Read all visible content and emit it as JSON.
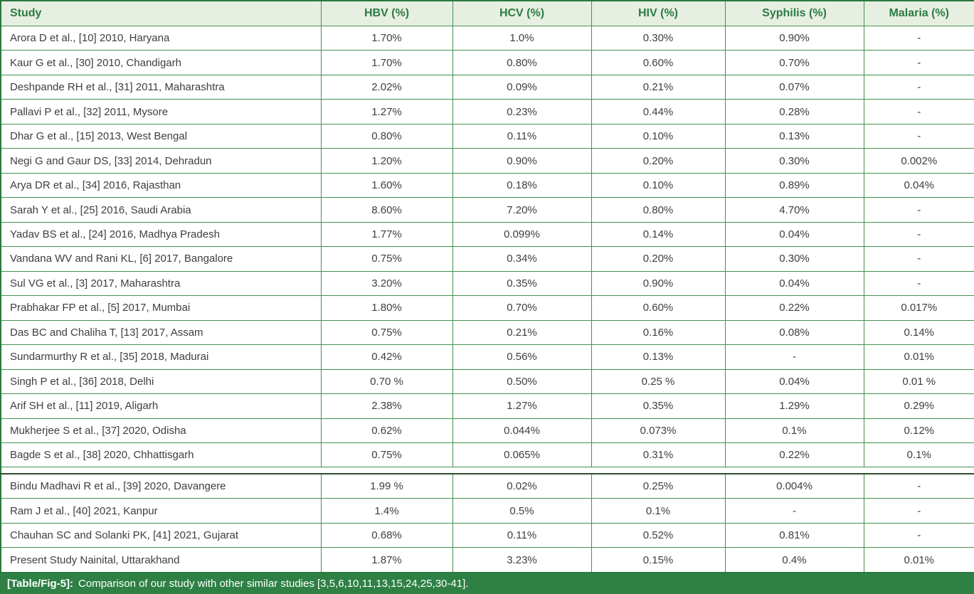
{
  "table": {
    "columns": [
      "Study",
      "HBV (%)",
      "HCV (%)",
      "HIV (%)",
      "Syphilis (%)",
      "Malaria (%)"
    ],
    "section_break_after_row": 18,
    "rows": [
      [
        "Arora D et al., [10] 2010, Haryana",
        "1.70%",
        "1.0%",
        "0.30%",
        "0.90%",
        "-"
      ],
      [
        "Kaur G et al., [30] 2010, Chandigarh",
        "1.70%",
        "0.80%",
        "0.60%",
        "0.70%",
        "-"
      ],
      [
        "Deshpande RH et al., [31] 2011, Maharashtra",
        "2.02%",
        "0.09%",
        "0.21%",
        "0.07%",
        "-"
      ],
      [
        "Pallavi P et al., [32] 2011, Mysore",
        "1.27%",
        "0.23%",
        "0.44%",
        "0.28%",
        "-"
      ],
      [
        "Dhar G et al., [15] 2013, West Bengal",
        "0.80%",
        "0.11%",
        "0.10%",
        "0.13%",
        "-"
      ],
      [
        "Negi G and Gaur DS, [33] 2014, Dehradun",
        "1.20%",
        "0.90%",
        "0.20%",
        "0.30%",
        "0.002%"
      ],
      [
        "Arya DR et al., [34] 2016, Rajasthan",
        "1.60%",
        "0.18%",
        "0.10%",
        "0.89%",
        "0.04%"
      ],
      [
        "Sarah Y et al., [25] 2016, Saudi Arabia",
        "8.60%",
        "7.20%",
        "0.80%",
        "4.70%",
        "-"
      ],
      [
        "Yadav BS et al., [24] 2016, Madhya Pradesh",
        "1.77%",
        "0.099%",
        "0.14%",
        "0.04%",
        "-"
      ],
      [
        "Vandana WV and Rani KL, [6] 2017, Bangalore",
        "0.75%",
        "0.34%",
        "0.20%",
        "0.30%",
        "-"
      ],
      [
        "Sul VG et al., [3] 2017, Maharashtra",
        "3.20%",
        "0.35%",
        "0.90%",
        "0.04%",
        "-"
      ],
      [
        "Prabhakar FP et al., [5] 2017, Mumbai",
        "1.80%",
        "0.70%",
        "0.60%",
        "0.22%",
        "0.017%"
      ],
      [
        "Das BC and Chaliha T, [13] 2017, Assam",
        "0.75%",
        "0.21%",
        "0.16%",
        "0.08%",
        "0.14%"
      ],
      [
        "Sundarmurthy R et al., [35] 2018, Madurai",
        "0.42%",
        "0.56%",
        "0.13%",
        "-",
        "0.01%"
      ],
      [
        "Singh P et al., [36] 2018, Delhi",
        "0.70 %",
        "0.50%",
        "0.25 %",
        "0.04%",
        "0.01 %"
      ],
      [
        "Arif SH et al., [11] 2019, Aligarh",
        "2.38%",
        "1.27%",
        "0.35%",
        "1.29%",
        "0.29%"
      ],
      [
        "Mukherjee S et al., [37] 2020, Odisha",
        "0.62%",
        "0.044%",
        "0.073%",
        "0.1%",
        "0.12%"
      ],
      [
        "Bagde S et al., [38] 2020, Chhattisgarh",
        "0.75%",
        "0.065%",
        "0.31%",
        "0.22%",
        "0.1%"
      ],
      [
        "Bindu Madhavi R et al., [39] 2020, Davangere",
        "1.99 %",
        "0.02%",
        "0.25%",
        "0.004%",
        "-"
      ],
      [
        "Ram J et al., [40] 2021, Kanpur",
        "1.4%",
        "0.5%",
        "0.1%",
        "-",
        "-"
      ],
      [
        "Chauhan SC and Solanki PK, [41] 2021, Gujarat",
        "0.68%",
        "0.11%",
        "0.52%",
        "0.81%",
        "-"
      ],
      [
        "Present Study Nainital, Uttarakhand",
        "1.87%",
        "3.23%",
        "0.15%",
        "0.4%",
        "0.01%"
      ]
    ]
  },
  "caption": {
    "label": "[Table/Fig-5]:",
    "text": "Comparison of our study with other similar studies [3,5,6,10,11,13,15,24,25,30-41]."
  },
  "colors": {
    "header_background": "#e7efe3",
    "header_text_green": "#2b7c41",
    "grid_border_green": "#44904e",
    "outer_border_green": "#2a7a3c",
    "section_break_line": "#2c4f2b",
    "caption_bar_green": "#2e8044",
    "caption_text": "#ffffff",
    "body_text": "#3e3e3e"
  }
}
